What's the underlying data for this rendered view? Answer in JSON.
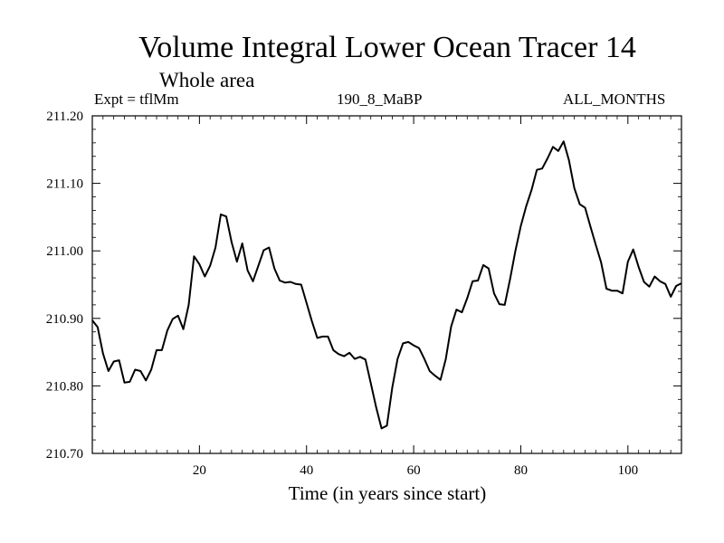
{
  "chart_data": {
    "type": "line",
    "title": "Volume Integral Lower Ocean Tracer 14",
    "subtitle": "Whole area",
    "annotations": {
      "experiment": "Expt = tflMm",
      "run": "190_8_MaBP",
      "months": "ALL_MONTHS"
    },
    "xlabel": "Time (in years since start)",
    "ylabel": "",
    "xlim": [
      0,
      110
    ],
    "ylim": [
      210.7,
      211.2
    ],
    "x_ticks": [
      20,
      40,
      60,
      80,
      100
    ],
    "x_tick_labels": [
      "20",
      "40",
      "60",
      "80",
      "100"
    ],
    "y_ticks": [
      210.7,
      210.8,
      210.9,
      211.0,
      211.1,
      211.2
    ],
    "y_tick_labels": [
      "210.70",
      "210.80",
      "210.90",
      "211.00",
      "211.10",
      "211.20"
    ],
    "grid": false,
    "series": [
      {
        "name": "Volume Integral Lower Ocean Tracer 14",
        "x": [
          0,
          1,
          2,
          3,
          4,
          5,
          6,
          7,
          8,
          9,
          10,
          11,
          12,
          13,
          14,
          15,
          16,
          17,
          18,
          19,
          20,
          21,
          22,
          23,
          24,
          25,
          26,
          27,
          28,
          29,
          30,
          31,
          32,
          33,
          34,
          35,
          36,
          37,
          38,
          39,
          40,
          41,
          42,
          43,
          44,
          45,
          46,
          47,
          48,
          49,
          50,
          51,
          52,
          53,
          54,
          55,
          56,
          57,
          58,
          59,
          60,
          61,
          62,
          63,
          64,
          65,
          66,
          67,
          68,
          69,
          70,
          71,
          72,
          73,
          74,
          75,
          76,
          77,
          78,
          79,
          80,
          81,
          82,
          83,
          84,
          85,
          86,
          87,
          88,
          89,
          90,
          91,
          92,
          93,
          94,
          95,
          96,
          97,
          98,
          99,
          100,
          101,
          102,
          103,
          104,
          105,
          106,
          107,
          108,
          109,
          110
        ],
        "values": [
          210.897,
          210.887,
          210.848,
          210.822,
          210.836,
          210.838,
          210.805,
          210.806,
          210.824,
          210.822,
          210.808,
          210.824,
          210.853,
          210.853,
          210.882,
          210.899,
          210.904,
          210.884,
          210.92,
          210.992,
          210.98,
          210.962,
          210.978,
          211.005,
          211.054,
          211.051,
          211.013,
          210.984,
          211.011,
          210.971,
          210.955,
          210.978,
          211.001,
          211.005,
          210.974,
          210.956,
          210.953,
          210.954,
          210.951,
          210.95,
          210.923,
          210.896,
          210.871,
          210.873,
          210.873,
          210.853,
          210.847,
          210.844,
          210.849,
          210.84,
          210.843,
          210.839,
          210.804,
          210.768,
          210.737,
          210.741,
          210.797,
          210.84,
          210.863,
          210.865,
          210.86,
          210.856,
          210.84,
          210.822,
          210.815,
          210.809,
          210.84,
          210.888,
          210.913,
          210.909,
          210.93,
          210.955,
          210.956,
          210.979,
          210.974,
          210.937,
          210.921,
          210.92,
          210.958,
          211.0,
          211.037,
          211.066,
          211.09,
          211.12,
          211.122,
          211.137,
          211.154,
          211.148,
          211.162,
          211.134,
          211.093,
          211.069,
          211.064,
          211.036,
          211.009,
          210.983,
          210.944,
          210.941,
          210.941,
          210.937,
          210.984,
          211.002,
          210.976,
          210.954,
          210.947,
          210.962,
          210.955,
          210.951,
          210.932,
          210.948,
          210.952
        ]
      }
    ]
  }
}
